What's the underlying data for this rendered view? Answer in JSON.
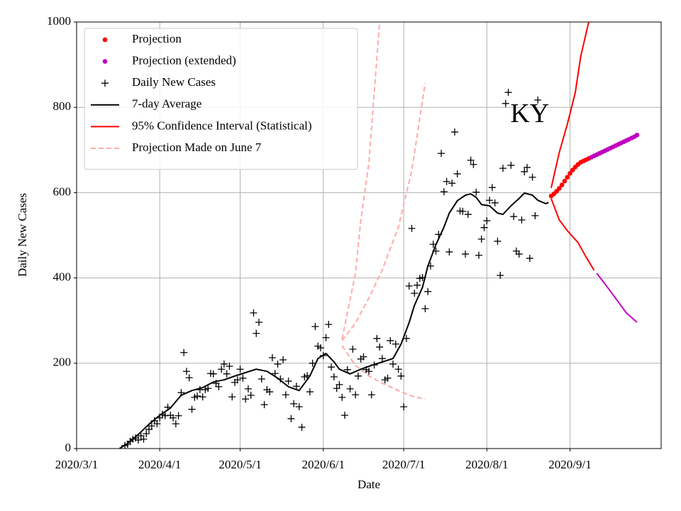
{
  "chart_data": {
    "type": "line",
    "xlabel": "Date",
    "ylabel": "Daily New Cases",
    "annotation": {
      "text": "KY",
      "x": "2020-08-17",
      "y": 780
    },
    "xlim": [
      "2020-03-01",
      "2020-10-05"
    ],
    "xticks": [
      {
        "value": "2020-03-01",
        "label": "2020/3/1"
      },
      {
        "value": "2020-04-01",
        "label": "2020/4/1"
      },
      {
        "value": "2020-05-01",
        "label": "2020/5/1"
      },
      {
        "value": "2020-06-01",
        "label": "2020/6/1"
      },
      {
        "value": "2020-07-01",
        "label": "2020/7/1"
      },
      {
        "value": "2020-08-01",
        "label": "2020/8/1"
      },
      {
        "value": "2020-09-01",
        "label": "2020/9/1"
      }
    ],
    "ylim": [
      0,
      1000
    ],
    "yticks": [
      0,
      200,
      400,
      600,
      800,
      1000
    ],
    "grid": true,
    "legend": "upper left",
    "series": [
      {
        "name": "Projection",
        "color": "#ff0000",
        "marker": "dot",
        "x": [
          "2020-08-25",
          "2020-08-26",
          "2020-08-27",
          "2020-08-28",
          "2020-08-29",
          "2020-08-30",
          "2020-08-31",
          "2020-09-01",
          "2020-09-02",
          "2020-09-03",
          "2020-09-04",
          "2020-09-05",
          "2020-09-06",
          "2020-09-07",
          "2020-09-08"
        ],
        "values": [
          592,
          597,
          603,
          610,
          618,
          627,
          636,
          645,
          653,
          660,
          666,
          671,
          674,
          677,
          680
        ]
      },
      {
        "name": "Projection (extended)",
        "color": "#bf00bf",
        "marker": "dot",
        "x": [
          "2020-09-09",
          "2020-09-10",
          "2020-09-11",
          "2020-09-12",
          "2020-09-13",
          "2020-09-14",
          "2020-09-15",
          "2020-09-16",
          "2020-09-17",
          "2020-09-18",
          "2020-09-19",
          "2020-09-20",
          "2020-09-21",
          "2020-09-22",
          "2020-09-23",
          "2020-09-24",
          "2020-09-25",
          "2020-09-26"
        ],
        "values": [
          683,
          686,
          689,
          692,
          695,
          698,
          701,
          704,
          707,
          710,
          713,
          716,
          719,
          722,
          725,
          728,
          731,
          735
        ]
      },
      {
        "name": "Daily New Cases",
        "color": "#000000",
        "marker": "plus",
        "x": [
          "2020-03-19",
          "2020-03-20",
          "2020-03-21",
          "2020-03-22",
          "2020-03-23",
          "2020-03-24",
          "2020-03-25",
          "2020-03-26",
          "2020-03-27",
          "2020-03-28",
          "2020-03-29",
          "2020-03-30",
          "2020-03-31",
          "2020-04-01",
          "2020-04-02",
          "2020-04-03",
          "2020-04-04",
          "2020-04-05",
          "2020-04-06",
          "2020-04-07",
          "2020-04-08",
          "2020-04-09",
          "2020-04-10",
          "2020-04-11",
          "2020-04-12",
          "2020-04-13",
          "2020-04-14",
          "2020-04-15",
          "2020-04-16",
          "2020-04-17",
          "2020-04-18",
          "2020-04-19",
          "2020-04-20",
          "2020-04-21",
          "2020-04-22",
          "2020-04-23",
          "2020-04-24",
          "2020-04-25",
          "2020-04-26",
          "2020-04-27",
          "2020-04-28",
          "2020-04-29",
          "2020-04-30",
          "2020-05-01",
          "2020-05-02",
          "2020-05-03",
          "2020-05-04",
          "2020-05-05",
          "2020-05-06",
          "2020-05-07",
          "2020-05-08",
          "2020-05-09",
          "2020-05-10",
          "2020-05-11",
          "2020-05-12",
          "2020-05-13",
          "2020-05-14",
          "2020-05-15",
          "2020-05-16",
          "2020-05-17",
          "2020-05-18",
          "2020-05-19",
          "2020-05-20",
          "2020-05-21",
          "2020-05-22",
          "2020-05-23",
          "2020-05-24",
          "2020-05-25",
          "2020-05-26",
          "2020-05-27",
          "2020-05-28",
          "2020-05-29",
          "2020-05-30",
          "2020-05-31",
          "2020-06-01",
          "2020-06-02",
          "2020-06-03",
          "2020-06-04",
          "2020-06-05",
          "2020-06-06",
          "2020-06-07",
          "2020-06-08",
          "2020-06-09",
          "2020-06-10",
          "2020-06-11",
          "2020-06-12",
          "2020-06-13",
          "2020-06-14",
          "2020-06-15",
          "2020-06-16",
          "2020-06-17",
          "2020-06-18",
          "2020-06-19",
          "2020-06-20",
          "2020-06-21",
          "2020-06-22",
          "2020-06-23",
          "2020-06-24",
          "2020-06-25",
          "2020-06-26",
          "2020-06-27",
          "2020-06-28",
          "2020-06-29",
          "2020-06-30",
          "2020-07-01",
          "2020-07-02",
          "2020-07-03",
          "2020-07-04",
          "2020-07-05",
          "2020-07-06",
          "2020-07-07",
          "2020-07-08",
          "2020-07-09",
          "2020-07-10",
          "2020-07-11",
          "2020-07-12",
          "2020-07-13",
          "2020-07-14",
          "2020-07-15",
          "2020-07-16",
          "2020-07-17",
          "2020-07-18",
          "2020-07-19",
          "2020-07-20",
          "2020-07-21",
          "2020-07-22",
          "2020-07-23",
          "2020-07-24",
          "2020-07-25",
          "2020-07-26",
          "2020-07-27",
          "2020-07-28",
          "2020-07-29",
          "2020-07-30",
          "2020-07-31",
          "2020-08-01",
          "2020-08-02",
          "2020-08-03",
          "2020-08-04",
          "2020-08-05",
          "2020-08-06",
          "2020-08-07",
          "2020-08-08",
          "2020-08-09",
          "2020-08-10",
          "2020-08-11",
          "2020-08-12",
          "2020-08-13",
          "2020-08-14",
          "2020-08-15",
          "2020-08-16",
          "2020-08-17",
          "2020-08-18",
          "2020-08-19",
          "2020-08-20"
        ],
        "values": [
          7,
          10,
          17,
          22,
          25,
          20,
          30,
          22,
          35,
          45,
          53,
          65,
          58,
          72,
          80,
          77,
          97,
          78,
          72,
          58,
          77,
          131,
          225,
          181,
          166,
          92,
          120,
          123,
          138,
          121,
          138,
          141,
          176,
          175,
          153,
          145,
          186,
          198,
          175,
          193,
          121,
          155,
          161,
          186,
          165,
          116,
          140,
          125,
          318,
          270,
          296,
          163,
          103,
          138,
          133,
          213,
          176,
          198,
          163,
          208,
          126,
          158,
          70,
          105,
          146,
          98,
          50,
          168,
          171,
          133,
          200,
          286,
          240,
          236,
          218,
          260,
          291,
          191,
          168,
          141,
          150,
          120,
          78,
          185,
          140,
          233,
          126,
          170,
          210,
          215,
          185,
          181,
          126,
          196,
          258,
          238,
          211,
          161,
          165,
          253,
          198,
          245,
          186,
          170,
          98,
          258,
          381,
          516,
          364,
          383,
          399,
          401,
          328,
          368,
          428,
          479,
          463,
          502,
          692,
          602,
          626,
          461,
          622,
          742,
          644,
          557,
          556,
          456,
          549,
          676,
          666,
          601,
          453,
          491,
          518,
          534,
          582,
          612,
          576,
          486,
          406,
          657,
          809,
          835,
          664,
          544,
          463,
          456,
          536,
          649,
          659,
          446,
          636,
          546,
          817
        ]
      },
      {
        "name": "7-day Average",
        "color": "#000000",
        "style": "solid",
        "x": [
          "2020-03-17",
          "2020-03-20",
          "2020-03-24",
          "2020-03-28",
          "2020-04-01",
          "2020-04-05",
          "2020-04-09",
          "2020-04-13",
          "2020-04-17",
          "2020-04-21",
          "2020-04-25",
          "2020-04-29",
          "2020-05-03",
          "2020-05-07",
          "2020-05-11",
          "2020-05-15",
          "2020-05-19",
          "2020-05-23",
          "2020-05-27",
          "2020-05-30",
          "2020-06-02",
          "2020-06-05",
          "2020-06-07",
          "2020-06-11",
          "2020-06-15",
          "2020-06-19",
          "2020-06-23",
          "2020-06-27",
          "2020-06-30",
          "2020-07-03",
          "2020-07-05",
          "2020-07-08",
          "2020-07-10",
          "2020-07-13",
          "2020-07-16",
          "2020-07-18",
          "2020-07-21",
          "2020-07-24",
          "2020-07-26",
          "2020-07-28",
          "2020-07-30",
          "2020-08-02",
          "2020-08-05",
          "2020-08-07",
          "2020-08-10",
          "2020-08-13",
          "2020-08-15",
          "2020-08-18",
          "2020-08-20",
          "2020-08-23",
          "2020-08-24"
        ],
        "values": [
          0,
          12,
          33,
          57,
          78,
          95,
          125,
          136,
          143,
          156,
          161,
          170,
          178,
          186,
          181,
          165,
          145,
          136,
          170,
          211,
          223,
          203,
          186,
          175,
          186,
          195,
          203,
          211,
          245,
          295,
          336,
          378,
          428,
          478,
          519,
          552,
          581,
          594,
          597,
          589,
          572,
          569,
          552,
          549,
          569,
          586,
          599,
          594,
          582,
          574,
          577
        ]
      },
      {
        "name": "95% Confidence Interval (Statistical)",
        "color": "#ff0000",
        "style": "solid",
        "x": [
          "2020-08-25",
          "2020-08-28",
          "2020-08-31",
          "2020-09-03",
          "2020-09-05",
          "2020-09-08"
        ],
        "values": [
          611,
          694,
          760,
          835,
          919,
          1000
        ]
      },
      {
        "name": "Projection Made on June 7",
        "color": "#ffaaaa",
        "style": "dashed",
        "x": [
          "2020-06-08",
          "2020-06-10",
          "2020-06-13",
          "2020-06-15",
          "2020-06-18",
          "2020-06-20",
          "2020-06-22"
        ],
        "values": [
          256,
          319,
          411,
          536,
          669,
          835,
          1000
        ]
      },
      {
        "color": "#ff0000",
        "style": "solid",
        "x": [
          "2020-08-25",
          "2020-08-28",
          "2020-08-31",
          "2020-09-04",
          "2020-09-07",
          "2020-09-10"
        ],
        "values": [
          586,
          536,
          511,
          483,
          449,
          418
        ]
      },
      {
        "color": "#bf00bf",
        "style": "solid",
        "x": [
          "2020-09-11",
          "2020-09-15",
          "2020-09-19",
          "2020-09-22",
          "2020-09-26"
        ],
        "values": [
          411,
          378,
          344,
          318,
          296
        ]
      },
      {
        "color": "#ffaaaa",
        "style": "dashed",
        "x": [
          "2020-06-08",
          "2020-06-13",
          "2020-06-18",
          "2020-06-23",
          "2020-06-29",
          "2020-07-04",
          "2020-07-09"
        ],
        "values": [
          253,
          294,
          353,
          419,
          519,
          652,
          857
        ]
      },
      {
        "color": "#ffaaaa",
        "style": "dashed",
        "x": [
          "2020-06-08",
          "2020-06-13",
          "2020-06-18",
          "2020-06-23",
          "2020-06-29",
          "2020-07-04",
          "2020-07-09"
        ],
        "values": [
          241,
          195,
          170,
          153,
          136,
          123,
          116
        ]
      }
    ]
  }
}
